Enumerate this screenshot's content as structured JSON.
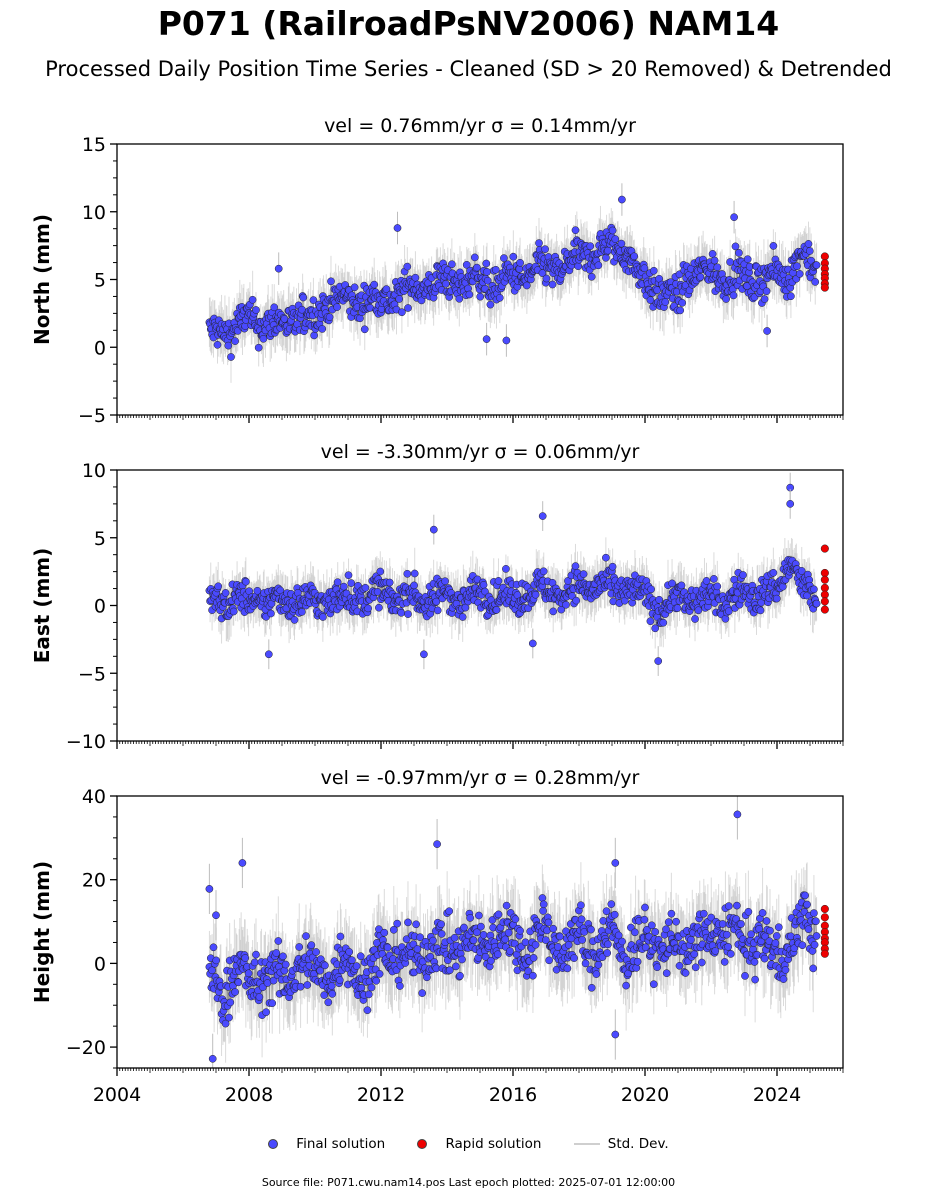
{
  "title": "P071 (RailroadPsNV2006) NAM14",
  "subtitle": "Processed Daily Position Time Series - Cleaned (SD > 20 Removed) & Detrended",
  "legend": {
    "final_label": "Final solution",
    "rapid_label": "Rapid solution",
    "std_label": "Std. Dev."
  },
  "footer": "Source file: P071.cwu.nam14.pos  Last epoch plotted: 2025-07-01 12:00:00",
  "colors": {
    "final": "#4a4aff",
    "rapid": "#ee0000",
    "std": "#bbbbbb",
    "marker_edge": "#222222"
  },
  "chart_data": [
    {
      "type": "scatter",
      "panel_title": "vel = 0.76mm/yr   σ = 0.14mm/yr",
      "ylabel": "North (mm)",
      "xlim": [
        2004,
        2026
      ],
      "ylim": [
        -5,
        15
      ],
      "yticks": [
        -5,
        0,
        5,
        10,
        15
      ],
      "ytick_labels": [
        "−5",
        "0",
        "5",
        "10",
        "15"
      ],
      "xticks": [
        2004,
        2008,
        2012,
        2016,
        2020,
        2024
      ],
      "xtick_labels": [],
      "final_series": {
        "name": "Final solution",
        "x": [
          2006.8,
          2007.2,
          2007.6,
          2008.0,
          2008.5,
          2009.0,
          2009.5,
          2010.0,
          2010.4,
          2011.0,
          2011.5,
          2012.0,
          2012.5,
          2013.0,
          2013.5,
          2014.0,
          2014.5,
          2015.0,
          2015.5,
          2016.0,
          2016.5,
          2017.0,
          2017.5,
          2018.0,
          2018.5,
          2019.0,
          2019.4,
          2019.8,
          2020.2,
          2020.6,
          2021.0,
          2021.2,
          2021.6,
          2022.0,
          2022.5,
          2023.0,
          2023.5,
          2024.0,
          2024.4,
          2024.8,
          2025.2
        ],
        "y": [
          0.8,
          1.2,
          1.5,
          2.0,
          1.8,
          1.6,
          2.3,
          2.0,
          3.6,
          3.3,
          3.5,
          3.4,
          3.9,
          4.4,
          4.6,
          4.8,
          4.9,
          5.0,
          4.6,
          5.2,
          5.5,
          5.8,
          5.9,
          6.6,
          7.1,
          7.3,
          7.4,
          5.2,
          4.6,
          3.9,
          3.3,
          5.3,
          5.4,
          5.5,
          5.2,
          5.1,
          5.0,
          5.3,
          5.6,
          6.8,
          5.6
        ],
        "band": 1.2
      },
      "rapid_series": {
        "name": "Rapid solution",
        "x": [
          2025.45,
          2025.45,
          2025.45,
          2025.45,
          2025.45,
          2025.45,
          2025.45
        ],
        "y": [
          6.7,
          6.2,
          5.8,
          5.4,
          5.1,
          4.7,
          4.4
        ]
      },
      "outliers": {
        "x": [
          2008.9,
          2012.5,
          2015.2,
          2019.3,
          2022.7,
          2023.7,
          2015.8
        ],
        "y": [
          5.8,
          8.8,
          0.6,
          10.9,
          9.6,
          1.2,
          0.5
        ]
      }
    },
    {
      "type": "scatter",
      "panel_title": "vel = -3.30mm/yr   σ = 0.06mm/yr",
      "ylabel": "East (mm)",
      "xlim": [
        2004,
        2026
      ],
      "ylim": [
        -10,
        10
      ],
      "yticks": [
        -10,
        -5,
        0,
        5,
        10
      ],
      "ytick_labels": [
        "−10",
        "−5",
        "0",
        "5",
        "10"
      ],
      "xticks": [
        2004,
        2008,
        2012,
        2016,
        2020,
        2024
      ],
      "xtick_labels": [],
      "final_series": {
        "name": "Final solution",
        "x": [
          2006.8,
          2007.2,
          2007.6,
          2008.0,
          2008.5,
          2009.0,
          2009.5,
          2010.0,
          2010.4,
          2011.0,
          2011.5,
          2012.0,
          2012.5,
          2013.0,
          2013.5,
          2014.0,
          2014.5,
          2015.0,
          2015.5,
          2016.0,
          2016.5,
          2017.0,
          2017.5,
          2018.0,
          2018.5,
          2019.0,
          2019.4,
          2019.8,
          2020.2,
          2020.6,
          2021.0,
          2021.2,
          2021.6,
          2022.0,
          2022.5,
          2023.0,
          2023.5,
          2024.0,
          2024.4,
          2024.8,
          2025.2
        ],
        "y": [
          0.0,
          0.3,
          0.6,
          0.2,
          0.4,
          0.3,
          0.5,
          0.2,
          0.4,
          0.7,
          0.6,
          1.0,
          0.6,
          0.7,
          0.3,
          0.9,
          0.4,
          1.0,
          0.7,
          0.5,
          1.2,
          1.1,
          0.9,
          1.4,
          1.5,
          1.2,
          1.3,
          0.8,
          0.4,
          -0.3,
          0.8,
          0.5,
          0.3,
          0.6,
          0.4,
          1.0,
          0.8,
          1.1,
          3.5,
          1.0,
          0.6
        ],
        "band": 1.1
      },
      "rapid_series": {
        "name": "Rapid solution",
        "x": [
          2025.45,
          2025.45,
          2025.45,
          2025.45,
          2025.45,
          2025.45,
          2025.45
        ],
        "y": [
          4.2,
          2.4,
          1.9,
          1.3,
          0.8,
          0.3,
          -0.3
        ]
      },
      "outliers": {
        "x": [
          2013.6,
          2016.9,
          2024.4,
          2024.4,
          2013.3,
          2020.4,
          2008.6,
          2016.6
        ],
        "y": [
          5.6,
          6.6,
          8.7,
          7.5,
          -3.6,
          -4.1,
          -3.6,
          -2.8
        ]
      }
    },
    {
      "type": "scatter",
      "panel_title": "vel = -0.97mm/yr   σ = 0.28mm/yr",
      "ylabel": "Height (mm)",
      "xlim": [
        2004,
        2026
      ],
      "ylim": [
        -25,
        40
      ],
      "yticks": [
        -20,
        0,
        20,
        40
      ],
      "ytick_labels": [
        "−20",
        "0",
        "20",
        "40"
      ],
      "xticks": [
        2004,
        2008,
        2012,
        2016,
        2020,
        2024
      ],
      "xtick_labels": [
        "2004",
        "2008",
        "2012",
        "2016",
        "2020",
        "2024"
      ],
      "final_series": {
        "name": "Final solution",
        "x": [
          2006.8,
          2007.2,
          2007.6,
          2008.0,
          2008.5,
          2009.0,
          2009.5,
          2010.0,
          2010.4,
          2011.0,
          2011.5,
          2012.0,
          2012.5,
          2013.0,
          2013.5,
          2014.0,
          2014.5,
          2015.0,
          2015.5,
          2016.0,
          2016.5,
          2017.0,
          2017.5,
          2018.0,
          2018.5,
          2019.0,
          2019.4,
          2019.8,
          2020.2,
          2020.6,
          2021.0,
          2021.2,
          2021.6,
          2022.0,
          2022.5,
          2023.0,
          2023.5,
          2024.0,
          2024.4,
          2024.8,
          2025.2
        ],
        "y": [
          -4,
          -8,
          0,
          -6,
          -2,
          -5,
          0,
          -2,
          -3,
          1,
          -4,
          2,
          3,
          0,
          5,
          2,
          6,
          3,
          8,
          6,
          4,
          9,
          2,
          7,
          3,
          8,
          2,
          4,
          6,
          3,
          5,
          2,
          7,
          4,
          10,
          3,
          7,
          0,
          6,
          10,
          5
        ],
        "band": 6
      },
      "rapid_series": {
        "name": "Rapid solution",
        "x": [
          2025.45,
          2025.45,
          2025.45,
          2025.45,
          2025.45,
          2025.45,
          2025.45,
          2025.45
        ],
        "y": [
          13,
          11,
          9,
          7.5,
          6,
          5,
          3.5,
          2.3
        ]
      },
      "outliers": {
        "x": [
          2006.8,
          2007.8,
          2006.9,
          2013.7,
          2019.1,
          2022.8,
          2019.1,
          2007.0
        ],
        "y": [
          17.8,
          24,
          -22.8,
          28.5,
          24,
          35.6,
          -17,
          11.5
        ]
      }
    }
  ]
}
